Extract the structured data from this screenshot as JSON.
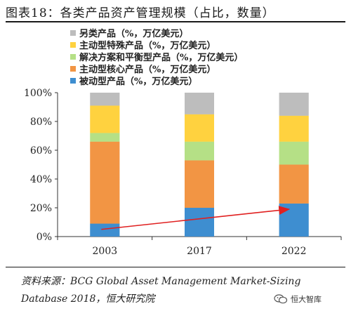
{
  "header": {
    "title": "图表18：各类产品资产管理规模（占比，数量）"
  },
  "chart_data": {
    "type": "bar",
    "stacked": true,
    "categories": [
      "2003",
      "2017",
      "2022"
    ],
    "series": [
      {
        "name": "被动型产品（%，万亿美元）",
        "color": "#3e8ed0",
        "values": [
          9,
          20,
          23
        ]
      },
      {
        "name": "主动型核心产品（%，万亿美元）",
        "color": "#f29544",
        "values": [
          57,
          33,
          27
        ]
      },
      {
        "name": "解决方案和平衡型产品（%，万亿美元）",
        "color": "#b5e086",
        "values": [
          6,
          13,
          16
        ]
      },
      {
        "name": "主动型特殊产品（%，万亿美元）",
        "color": "#ffd23f",
        "values": [
          19,
          19,
          18
        ]
      },
      {
        "name": "另类产品（%，万亿美元）",
        "color": "#bdbdbd",
        "values": [
          9,
          15,
          16
        ]
      }
    ],
    "ylim": [
      0,
      100
    ],
    "yticks": [
      "0%",
      "20%",
      "40%",
      "60%",
      "80%",
      "100%"
    ],
    "annotation": {
      "type": "arrow",
      "color": "#e02020",
      "from": {
        "x": "2003",
        "y": 5
      },
      "to": {
        "x": "2022",
        "y": 19
      }
    }
  },
  "footer": {
    "source": "资料来源：BCG Global Asset Management Market-Sizing Database 2018，恒大研究院",
    "watermark": "恒大智库"
  }
}
